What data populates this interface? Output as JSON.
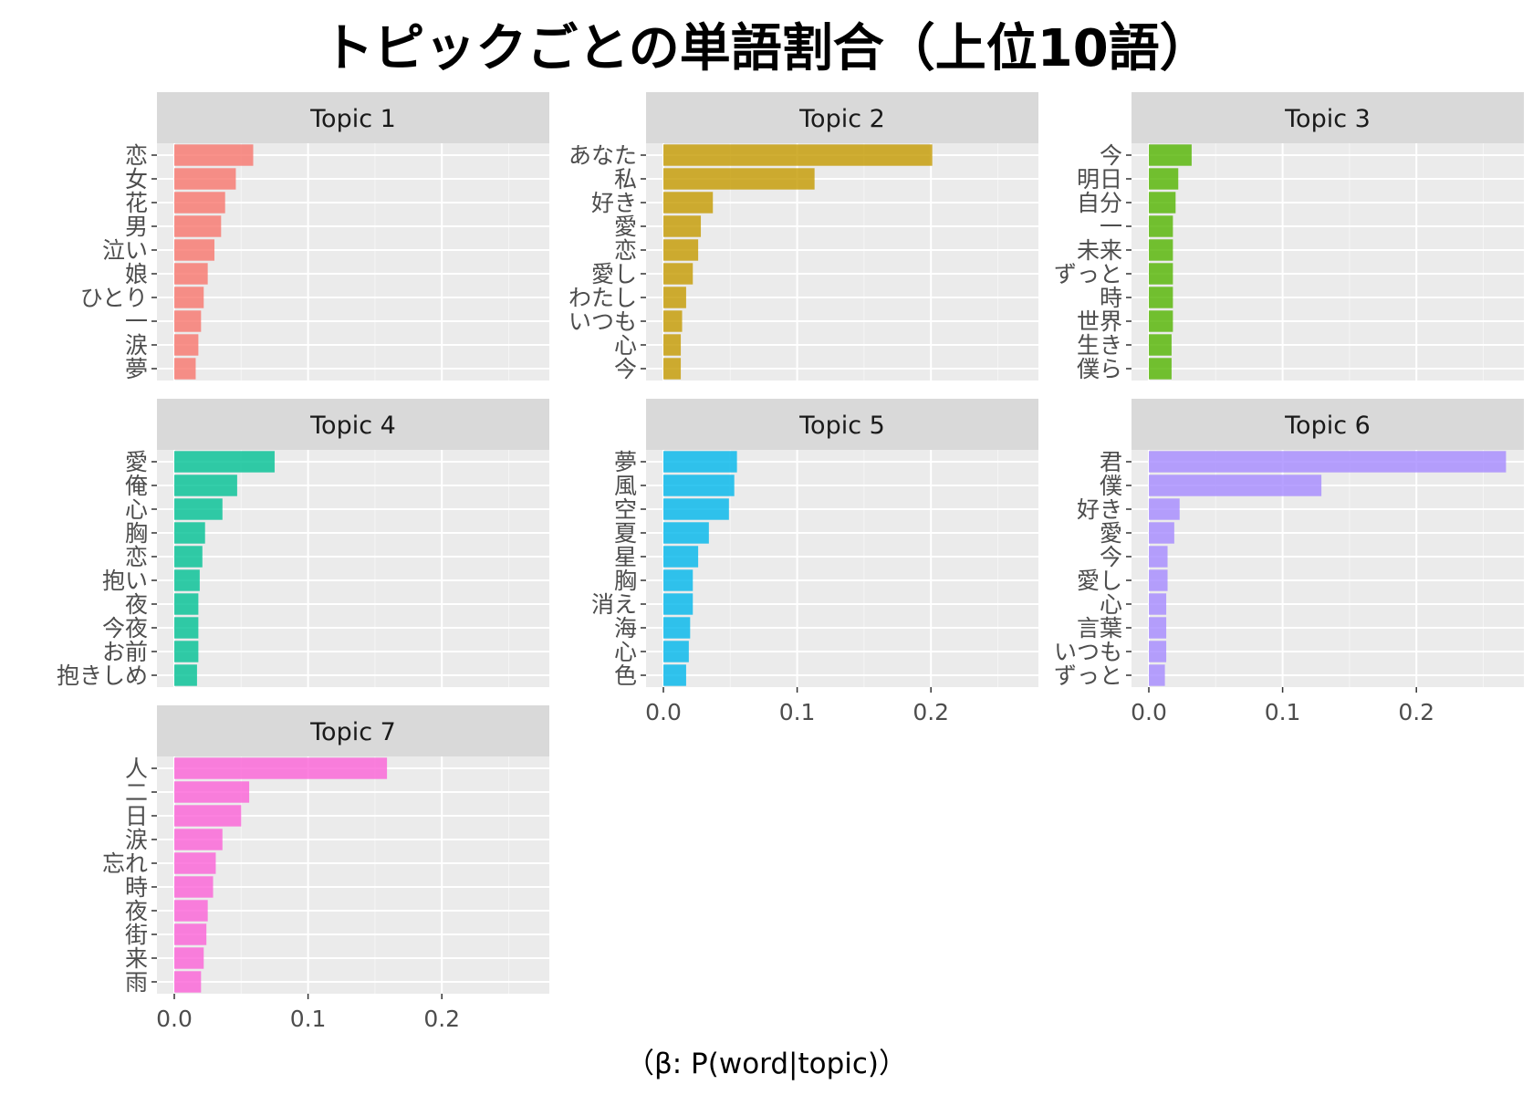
{
  "title": "トピックごとの単語割合（上位10語）",
  "x_axis_title": "（β: P(word|topic)）",
  "chart_data": {
    "type": "bar",
    "orientation": "horizontal",
    "facet_layout": "3 columns",
    "xlim": [
      0,
      0.28
    ],
    "x_ticks": [
      "0.0",
      "0.1",
      "0.2"
    ],
    "x_tick_values": [
      0,
      0.1,
      0.2
    ],
    "grid": true,
    "panel_background": "#ebebeb",
    "strip_background": "#d9d9d9",
    "facets": [
      {
        "label": "Topic 1",
        "color": "#f8766d",
        "words": [
          "恋",
          "女",
          "花",
          "男",
          "泣い",
          "娘",
          "ひとり",
          "一",
          "涙",
          "夢"
        ],
        "values": [
          0.059,
          0.046,
          0.038,
          0.035,
          0.03,
          0.025,
          0.022,
          0.02,
          0.018,
          0.016
        ]
      },
      {
        "label": "Topic 2",
        "color": "#c49a00",
        "words": [
          "あなた",
          "私",
          "好き",
          "愛",
          "恋",
          "愛し",
          "わたし",
          "いつも",
          "心",
          "今"
        ],
        "values": [
          0.201,
          0.113,
          0.037,
          0.028,
          0.026,
          0.022,
          0.017,
          0.014,
          0.013,
          0.013
        ]
      },
      {
        "label": "Topic 3",
        "color": "#53b400",
        "words": [
          "今",
          "明日",
          "自分",
          "一",
          "未来",
          "ずっと",
          "時",
          "世界",
          "生き",
          "僕ら"
        ],
        "values": [
          0.032,
          0.022,
          0.02,
          0.018,
          0.018,
          0.018,
          0.018,
          0.018,
          0.017,
          0.017
        ]
      },
      {
        "label": "Topic 4",
        "color": "#00c094",
        "words": [
          "愛",
          "俺",
          "心",
          "胸",
          "恋",
          "抱い",
          "夜",
          "今夜",
          "お前",
          "抱きしめ"
        ],
        "values": [
          0.075,
          0.047,
          0.036,
          0.023,
          0.021,
          0.019,
          0.018,
          0.018,
          0.018,
          0.017
        ]
      },
      {
        "label": "Topic 5",
        "color": "#00b6eb",
        "words": [
          "夢",
          "風",
          "空",
          "夏",
          "星",
          "胸",
          "消え",
          "海",
          "心",
          "色"
        ],
        "values": [
          0.055,
          0.053,
          0.049,
          0.034,
          0.026,
          0.022,
          0.022,
          0.02,
          0.019,
          0.017
        ]
      },
      {
        "label": "Topic 6",
        "color": "#a58aff",
        "words": [
          "君",
          "僕",
          "好き",
          "愛",
          "今",
          "愛し",
          "心",
          "言葉",
          "いつも",
          "ずっと"
        ],
        "values": [
          0.267,
          0.129,
          0.023,
          0.019,
          0.014,
          0.014,
          0.013,
          0.013,
          0.013,
          0.012
        ]
      },
      {
        "label": "Topic 7",
        "color": "#fb61d7",
        "words": [
          "人",
          "二",
          "日",
          "涙",
          "忘れ",
          "時",
          "夜",
          "街",
          "来",
          "雨"
        ],
        "values": [
          0.159,
          0.056,
          0.05,
          0.036,
          0.031,
          0.029,
          0.025,
          0.024,
          0.022,
          0.02
        ]
      }
    ]
  }
}
